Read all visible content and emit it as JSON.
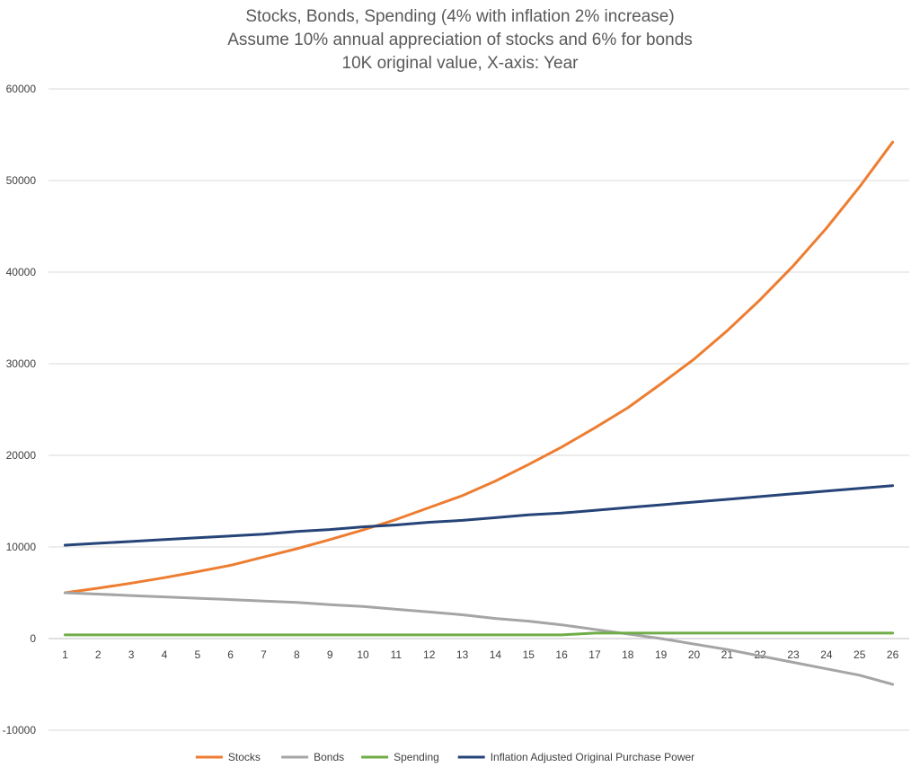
{
  "chart_data": {
    "type": "line",
    "title": [
      "Stocks, Bonds, Spending (4% with inflation 2% increase)",
      "Assume 10% annual appreciation of stocks and 6% for bonds",
      "10K original value, X-axis: Year"
    ],
    "xlabel": "",
    "ylabel": "",
    "categories": [
      "1",
      "2",
      "3",
      "4",
      "5",
      "6",
      "7",
      "8",
      "9",
      "10",
      "11",
      "12",
      "13",
      "14",
      "15",
      "16",
      "17",
      "18",
      "19",
      "20",
      "21",
      "22",
      "23",
      "24",
      "25",
      "26"
    ],
    "ylim": [
      -10000,
      60000
    ],
    "yticks": [
      -10000,
      0,
      10000,
      20000,
      30000,
      40000,
      50000,
      60000
    ],
    "grid": true,
    "legend_position": "bottom",
    "series": [
      {
        "name": "Stocks",
        "color": "#ED7D31",
        "values": [
          5000,
          5500,
          6050,
          6650,
          7300,
          8000,
          8900,
          9800,
          10800,
          11850,
          13000,
          14300,
          15600,
          17200,
          19000,
          20900,
          23000,
          25200,
          27800,
          30500,
          33600,
          37000,
          40700,
          44800,
          49300,
          54200
        ]
      },
      {
        "name": "Bonds",
        "color": "#A5A5A5",
        "values": [
          5000,
          4850,
          4700,
          4550,
          4400,
          4250,
          4100,
          3950,
          3700,
          3500,
          3200,
          2900,
          2600,
          2200,
          1900,
          1500,
          1000,
          500,
          0,
          -600,
          -1200,
          -1900,
          -2600,
          -3300,
          -4000,
          -5000
        ]
      },
      {
        "name": "Spending",
        "color": "#70AD47",
        "values": [
          400,
          400,
          400,
          400,
          400,
          400,
          400,
          400,
          400,
          400,
          400,
          400,
          400,
          400,
          400,
          400,
          600,
          600,
          600,
          600,
          600,
          600,
          600,
          600,
          600,
          600
        ]
      },
      {
        "name": "Inflation Adjusted Original Purchase Power",
        "color": "#264478",
        "values": [
          10200,
          10400,
          10600,
          10800,
          11000,
          11200,
          11400,
          11700,
          11900,
          12200,
          12400,
          12700,
          12900,
          13200,
          13500,
          13700,
          14000,
          14300,
          14600,
          14900,
          15200,
          15500,
          15800,
          16100,
          16400,
          16700
        ]
      }
    ]
  }
}
